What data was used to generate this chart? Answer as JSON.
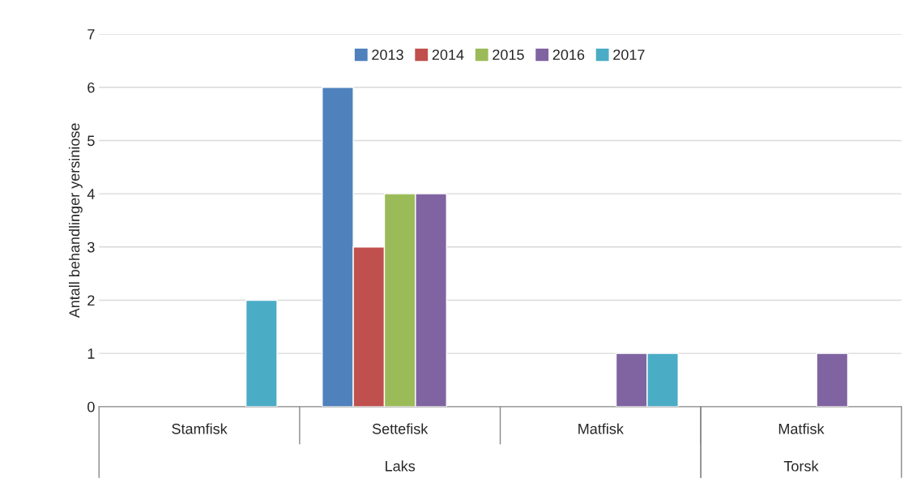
{
  "chart_data": {
    "type": "bar",
    "ylabel": "Antall behandlinger yersiniose",
    "categories": [
      "Stamfisk",
      "Settefisk",
      "Matfisk",
      "Matfisk"
    ],
    "series": [
      {
        "name": "2013",
        "color": "#4f81bd",
        "values": [
          null,
          6,
          null,
          null
        ]
      },
      {
        "name": "2014",
        "color": "#c0504d",
        "values": [
          null,
          3,
          null,
          null
        ]
      },
      {
        "name": "2015",
        "color": "#9bbb59",
        "values": [
          null,
          4,
          null,
          null
        ]
      },
      {
        "name": "2016",
        "color": "#8064a2",
        "values": [
          null,
          4,
          1,
          1
        ]
      },
      {
        "name": "2017",
        "color": "#4bacc6",
        "values": [
          2,
          null,
          1,
          null
        ]
      }
    ],
    "annotations": [
      "Laks",
      "Torsk"
    ],
    "ylim": [
      0,
      7
    ],
    "yticks": [
      0,
      1,
      2,
      3,
      4,
      5,
      6,
      7
    ],
    "grid": "y",
    "legend": "top"
  }
}
